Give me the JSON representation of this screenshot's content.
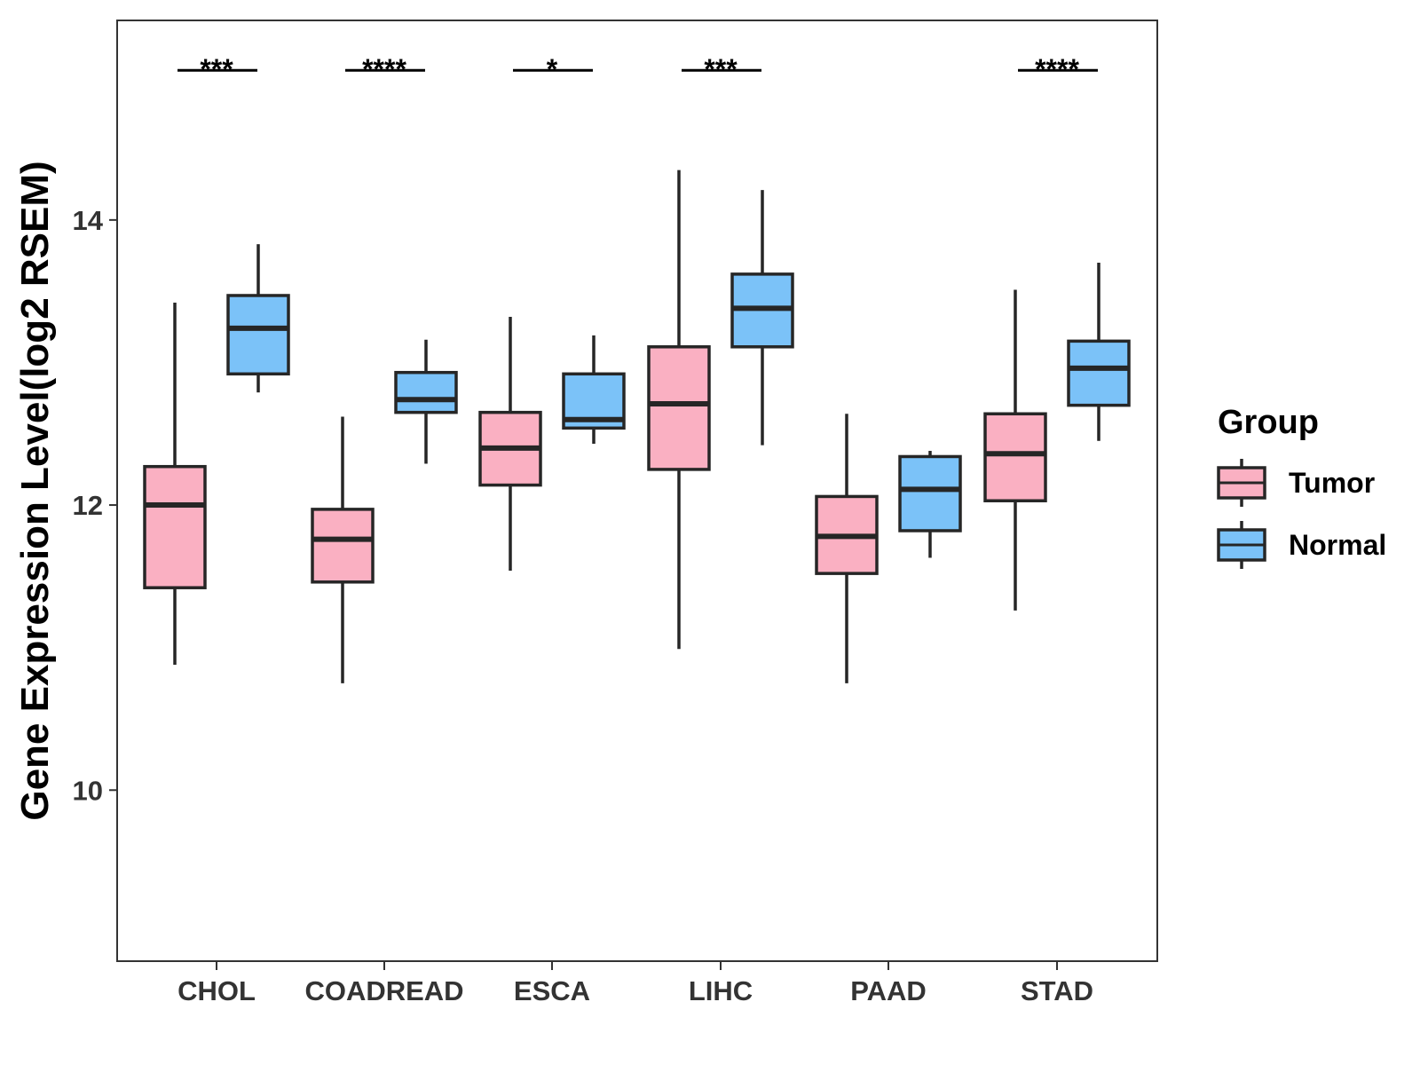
{
  "chart_data": {
    "type": "boxplot",
    "title": "",
    "xlabel": "",
    "ylabel": "Gene Expression Level(log2 RSEM)",
    "ylim": [
      8.8,
      15.4
    ],
    "yticks": [
      10,
      12,
      14
    ],
    "categories": [
      "CHOL",
      "COADREAD",
      "ESCA",
      "LIHC",
      "PAAD",
      "STAD"
    ],
    "series": [
      {
        "name": "Tumor",
        "color": "#FAB0C2",
        "boxes": [
          {
            "min": 10.88,
            "q1": 11.42,
            "median": 12.0,
            "q3": 12.27,
            "max": 13.42
          },
          {
            "min": 10.75,
            "q1": 11.46,
            "median": 11.76,
            "q3": 11.97,
            "max": 12.62
          },
          {
            "min": 11.54,
            "q1": 12.14,
            "median": 12.4,
            "q3": 12.65,
            "max": 13.32
          },
          {
            "min": 10.99,
            "q1": 12.25,
            "median": 12.71,
            "q3": 13.11,
            "max": 14.35
          },
          {
            "min": 10.75,
            "q1": 11.52,
            "median": 11.78,
            "q3": 12.06,
            "max": 12.64
          },
          {
            "min": 11.26,
            "q1": 12.03,
            "median": 12.36,
            "q3": 12.64,
            "max": 13.51
          }
        ]
      },
      {
        "name": "Normal",
        "color": "#7BC2F8",
        "boxes": [
          {
            "min": 12.79,
            "q1": 12.92,
            "median": 13.24,
            "q3": 13.47,
            "max": 13.83
          },
          {
            "min": 12.29,
            "q1": 12.65,
            "median": 12.74,
            "q3": 12.93,
            "max": 13.16
          },
          {
            "min": 12.43,
            "q1": 12.54,
            "median": 12.6,
            "q3": 12.92,
            "max": 13.19
          },
          {
            "min": 12.42,
            "q1": 13.11,
            "median": 13.38,
            "q3": 13.62,
            "max": 14.21
          },
          {
            "min": 11.63,
            "q1": 11.82,
            "median": 12.11,
            "q3": 12.34,
            "max": 12.38
          },
          {
            "min": 12.45,
            "q1": 12.7,
            "median": 12.96,
            "q3": 13.15,
            "max": 13.7
          }
        ]
      }
    ],
    "significance": [
      {
        "category": "CHOL",
        "label": "***"
      },
      {
        "category": "COADREAD",
        "label": "****"
      },
      {
        "category": "ESCA",
        "label": "*"
      },
      {
        "category": "LIHC",
        "label": "***"
      },
      {
        "category": "PAAD",
        "label": ""
      },
      {
        "category": "STAD",
        "label": "****"
      }
    ],
    "significance_level": 15.05,
    "legend": {
      "title": "Group",
      "position": "right",
      "entries": [
        "Tumor",
        "Normal"
      ]
    },
    "grid": false
  },
  "colors": {
    "tumor": "#FAB0C2",
    "normal": "#7BC2F8",
    "stroke": "#262626",
    "tick_text": "#333333"
  }
}
